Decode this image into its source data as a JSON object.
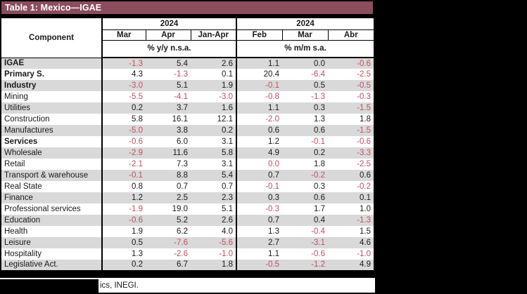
{
  "title_bar": {
    "label": "Table 1: Mexico—IGAE"
  },
  "footer": {
    "source_visible_text": "ics, INEGI."
  },
  "colors": {
    "accent": "#8B4D5E",
    "negative": "#C14F62",
    "stripe": "#D9D9D9"
  },
  "chart_data": {
    "type": "table",
    "title": "Table 1: Mexico—IGAE",
    "component_label": "Component",
    "column_groups": [
      {
        "year": "2024",
        "columns": [
          "Mar",
          "Apr",
          "Jan-Apr"
        ],
        "unit": "% y/y n.s.a."
      },
      {
        "year": "2024",
        "columns": [
          "Feb",
          "Mar",
          "Abr"
        ],
        "unit": "% m/m s.a."
      }
    ],
    "rows": [
      {
        "label": "IGAE",
        "bold": true,
        "cells": [
          [
            "-1.3",
            1
          ],
          [
            "5.4",
            0
          ],
          [
            "2.6",
            0
          ],
          [
            "1.1",
            0
          ],
          [
            "0.0",
            0
          ],
          [
            "-0.6",
            1
          ]
        ]
      },
      {
        "label": "Primary S.",
        "bold": true,
        "cells": [
          [
            "4.3",
            0
          ],
          [
            "-1.3",
            1
          ],
          [
            "0.1",
            0
          ],
          [
            "20.4",
            0
          ],
          [
            "-6.4",
            1
          ],
          [
            "-2.5",
            1
          ]
        ]
      },
      {
        "label": "Industry",
        "bold": true,
        "cells": [
          [
            "-3.0",
            1
          ],
          [
            "5.1",
            0
          ],
          [
            "1.9",
            0
          ],
          [
            "-0.1",
            1
          ],
          [
            "0.5",
            0
          ],
          [
            "-0.5",
            1
          ]
        ]
      },
      {
        "label": "Mining",
        "bold": false,
        "cells": [
          [
            "-5.5",
            1
          ],
          [
            "-4.1",
            1
          ],
          [
            "-3.0",
            1
          ],
          [
            "-0.8",
            1
          ],
          [
            "-1.3",
            1
          ],
          [
            "-0.3",
            1
          ]
        ]
      },
      {
        "label": "Utilities",
        "bold": false,
        "cells": [
          [
            "0.2",
            0
          ],
          [
            "3.7",
            0
          ],
          [
            "1.6",
            0
          ],
          [
            "1.1",
            0
          ],
          [
            "0.3",
            0
          ],
          [
            "-1.5",
            1
          ]
        ]
      },
      {
        "label": "Construction",
        "bold": false,
        "cells": [
          [
            "5.8",
            0
          ],
          [
            "16.1",
            0
          ],
          [
            "12.1",
            0
          ],
          [
            "-2.0",
            1
          ],
          [
            "1.3",
            0
          ],
          [
            "1.8",
            0
          ]
        ]
      },
      {
        "label": "Manufactures",
        "bold": false,
        "cells": [
          [
            "-5.0",
            1
          ],
          [
            "3.8",
            0
          ],
          [
            "0.2",
            0
          ],
          [
            "0.6",
            0
          ],
          [
            "0.6",
            0
          ],
          [
            "-1.5",
            1
          ]
        ]
      },
      {
        "label": "Services",
        "bold": true,
        "cells": [
          [
            "-0.6",
            1
          ],
          [
            "6.0",
            0
          ],
          [
            "3.1",
            0
          ],
          [
            "1.2",
            0
          ],
          [
            "-0.1",
            1
          ],
          [
            "-0.6",
            1
          ]
        ]
      },
      {
        "label": "Wholesale",
        "bold": false,
        "cells": [
          [
            "-2.9",
            1
          ],
          [
            "11.6",
            0
          ],
          [
            "5.8",
            0
          ],
          [
            "4.9",
            0
          ],
          [
            "0.2",
            0
          ],
          [
            "-3.3",
            1
          ]
        ]
      },
      {
        "label": "Retail",
        "bold": false,
        "cells": [
          [
            "-2.1",
            1
          ],
          [
            "7.3",
            0
          ],
          [
            "3.1",
            0
          ],
          [
            "0.0",
            1
          ],
          [
            "1.8",
            0
          ],
          [
            "-2.5",
            1
          ]
        ]
      },
      {
        "label": "Transport & warehouse",
        "bold": false,
        "cells": [
          [
            "-0.1",
            1
          ],
          [
            "8.8",
            0
          ],
          [
            "5.4",
            0
          ],
          [
            "0.7",
            0
          ],
          [
            "-0.2",
            1
          ],
          [
            "0.6",
            0
          ]
        ]
      },
      {
        "label": "Real State",
        "bold": false,
        "cells": [
          [
            "0.8",
            0
          ],
          [
            "0.7",
            0
          ],
          [
            "0.7",
            0
          ],
          [
            "-0.1",
            1
          ],
          [
            "0.3",
            0
          ],
          [
            "-0.2",
            1
          ]
        ]
      },
      {
        "label": "Finance",
        "bold": false,
        "cells": [
          [
            "1.2",
            0
          ],
          [
            "2.5",
            0
          ],
          [
            "2.3",
            0
          ],
          [
            "0.3",
            0
          ],
          [
            "0.6",
            0
          ],
          [
            "0.1",
            0
          ]
        ]
      },
      {
        "label": "Professional services",
        "bold": false,
        "cells": [
          [
            "-1.9",
            1
          ],
          [
            "19.0",
            0
          ],
          [
            "5.1",
            0
          ],
          [
            "-0.3",
            1
          ],
          [
            "1.7",
            0
          ],
          [
            "1.0",
            0
          ]
        ]
      },
      {
        "label": "Education",
        "bold": false,
        "cells": [
          [
            "-0.6",
            1
          ],
          [
            "5.2",
            0
          ],
          [
            "2.6",
            0
          ],
          [
            "0.7",
            0
          ],
          [
            "0.4",
            0
          ],
          [
            "-1.3",
            1
          ]
        ]
      },
      {
        "label": "Health",
        "bold": false,
        "cells": [
          [
            "1.9",
            0
          ],
          [
            "6.2",
            0
          ],
          [
            "4.0",
            0
          ],
          [
            "1.3",
            0
          ],
          [
            "-0.4",
            1
          ],
          [
            "1.5",
            0
          ]
        ]
      },
      {
        "label": "Leisure",
        "bold": false,
        "cells": [
          [
            "0.5",
            0
          ],
          [
            "-7.6",
            1
          ],
          [
            "-5.6",
            1
          ],
          [
            "2.7",
            0
          ],
          [
            "-3.1",
            1
          ],
          [
            "4.6",
            0
          ]
        ]
      },
      {
        "label": "Hospitality",
        "bold": false,
        "cells": [
          [
            "1.3",
            0
          ],
          [
            "-2.6",
            1
          ],
          [
            "-1.0",
            1
          ],
          [
            "1.1",
            0
          ],
          [
            "-0.6",
            1
          ],
          [
            "-1.0",
            1
          ]
        ]
      },
      {
        "label": "Legislative Act.",
        "bold": false,
        "cells": [
          [
            "0.2",
            0
          ],
          [
            "6.7",
            0
          ],
          [
            "1.8",
            0
          ],
          [
            "-0.5",
            1
          ],
          [
            "-1.2",
            1
          ],
          [
            "4.9",
            0
          ]
        ]
      }
    ]
  }
}
